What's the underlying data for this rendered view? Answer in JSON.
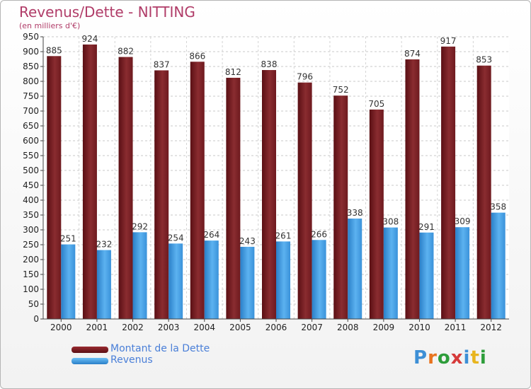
{
  "title": "Revenus/Dette - NITTING",
  "subtitle": "(en milliers d'€)",
  "colors": {
    "dette": "#7a1d22",
    "revenus": "#3d98e0",
    "title": "#b03c68"
  },
  "logo": {
    "chars": [
      "P",
      "r",
      "o",
      "x",
      "i",
      "t",
      "i"
    ],
    "colors": [
      "#3d8fd6",
      "#e8731e",
      "#2d9d3a",
      "#d63a3a",
      "#3d8fd6",
      "#e8b51e",
      "#2d9d3a"
    ]
  },
  "chart_data": {
    "type": "bar",
    "title": "Revenus/Dette - NITTING",
    "subtitle": "(en milliers d'€)",
    "categories": [
      "2000",
      "2001",
      "2002",
      "2003",
      "2004",
      "2005",
      "2006",
      "2007",
      "2008",
      "2009",
      "2010",
      "2011",
      "2012"
    ],
    "series": [
      {
        "name": "Montant de la Dette",
        "values": [
          885,
          924,
          882,
          837,
          866,
          812,
          838,
          796,
          752,
          705,
          874,
          917,
          853
        ]
      },
      {
        "name": "Revenus",
        "values": [
          251,
          232,
          292,
          254,
          264,
          243,
          261,
          266,
          338,
          308,
          291,
          309,
          358
        ]
      }
    ],
    "ylim": [
      0,
      950
    ],
    "yticks": [
      0,
      50,
      100,
      150,
      200,
      250,
      300,
      350,
      400,
      450,
      500,
      550,
      600,
      650,
      700,
      750,
      800,
      850,
      900,
      950
    ],
    "grid": true,
    "legend": "bottom-left"
  }
}
